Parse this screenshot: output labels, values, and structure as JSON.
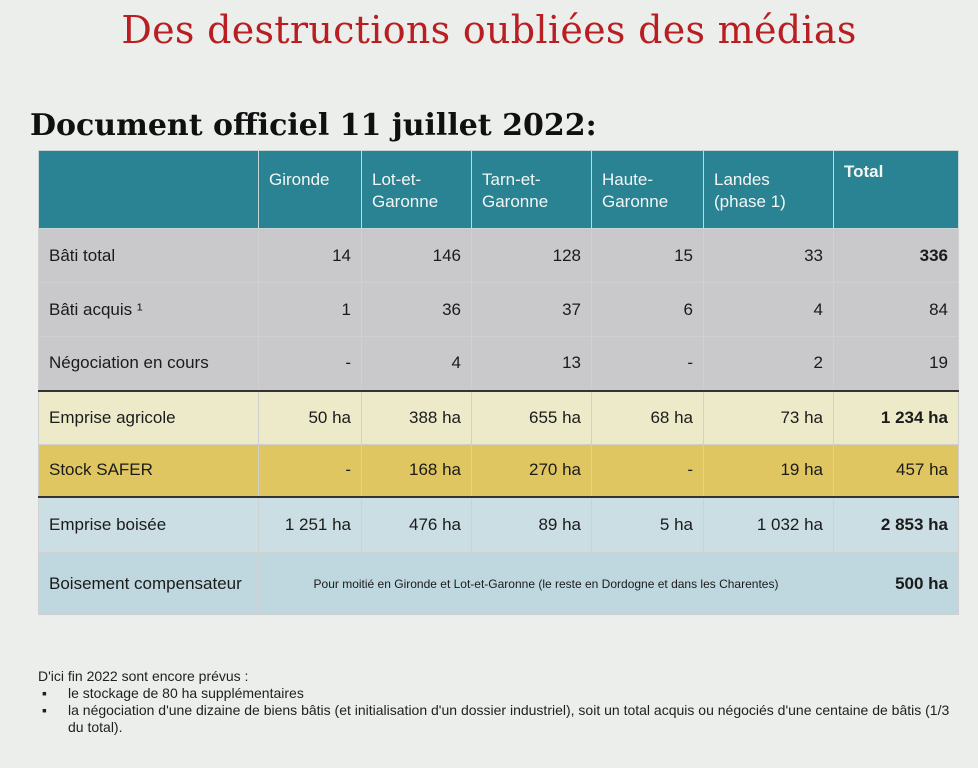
{
  "title": "Des destructions oubliées des médias",
  "subtitle": "Document officiel 11 juillet 2022:",
  "table": {
    "headers": [
      "",
      "Gironde",
      "Lot-et-Garonne",
      "Tarn-et-Garonne",
      "Haute-Garonne",
      "Landes (phase 1)",
      "Total"
    ],
    "rows": [
      {
        "label": "Bâti total",
        "values": [
          "14",
          "146",
          "128",
          "15",
          "33",
          "336"
        ]
      },
      {
        "label": "Bâti acquis ¹",
        "values": [
          "1",
          "36",
          "37",
          "6",
          "4",
          "84"
        ]
      },
      {
        "label": "Négociation en cours",
        "values": [
          "-",
          "4",
          "13",
          "-",
          "2",
          "19"
        ]
      },
      {
        "label": "Emprise agricole",
        "values": [
          "50 ha",
          "388 ha",
          "655 ha",
          "68 ha",
          "73 ha",
          "1 234 ha"
        ]
      },
      {
        "label": "Stock SAFER",
        "values": [
          "-",
          "168 ha",
          "270 ha",
          "-",
          "19 ha",
          "457 ha"
        ]
      },
      {
        "label": "Emprise boisée",
        "values": [
          "1 251 ha",
          "476 ha",
          "89 ha",
          "5 ha",
          "1 032 ha",
          "2 853 ha"
        ]
      },
      {
        "label": "Boisement compensateur",
        "note": "Pour moitié en Gironde et Lot-et-Garonne (le reste en Dordogne et dans les Charentes)",
        "total": "500 ha"
      }
    ]
  },
  "footer": {
    "intro": "D'ici fin 2022 sont encore prévus :",
    "bullet_symbol": "▪",
    "items": [
      "le stockage de 80 ha supplémentaires",
      "la négociation d'une dizaine de biens bâtis (et initialisation d'un dossier industriel), soit un total acquis ou négociés d'une centaine de bâtis (1/3 du total)."
    ]
  },
  "colors": {
    "title": "#b81e22",
    "header_bg": "#2a8392",
    "gray_rows": "#c9c8ca",
    "agri_row": "#edeaca",
    "safer_row": "#dfc661",
    "wood_rows": "#cbdee4"
  }
}
